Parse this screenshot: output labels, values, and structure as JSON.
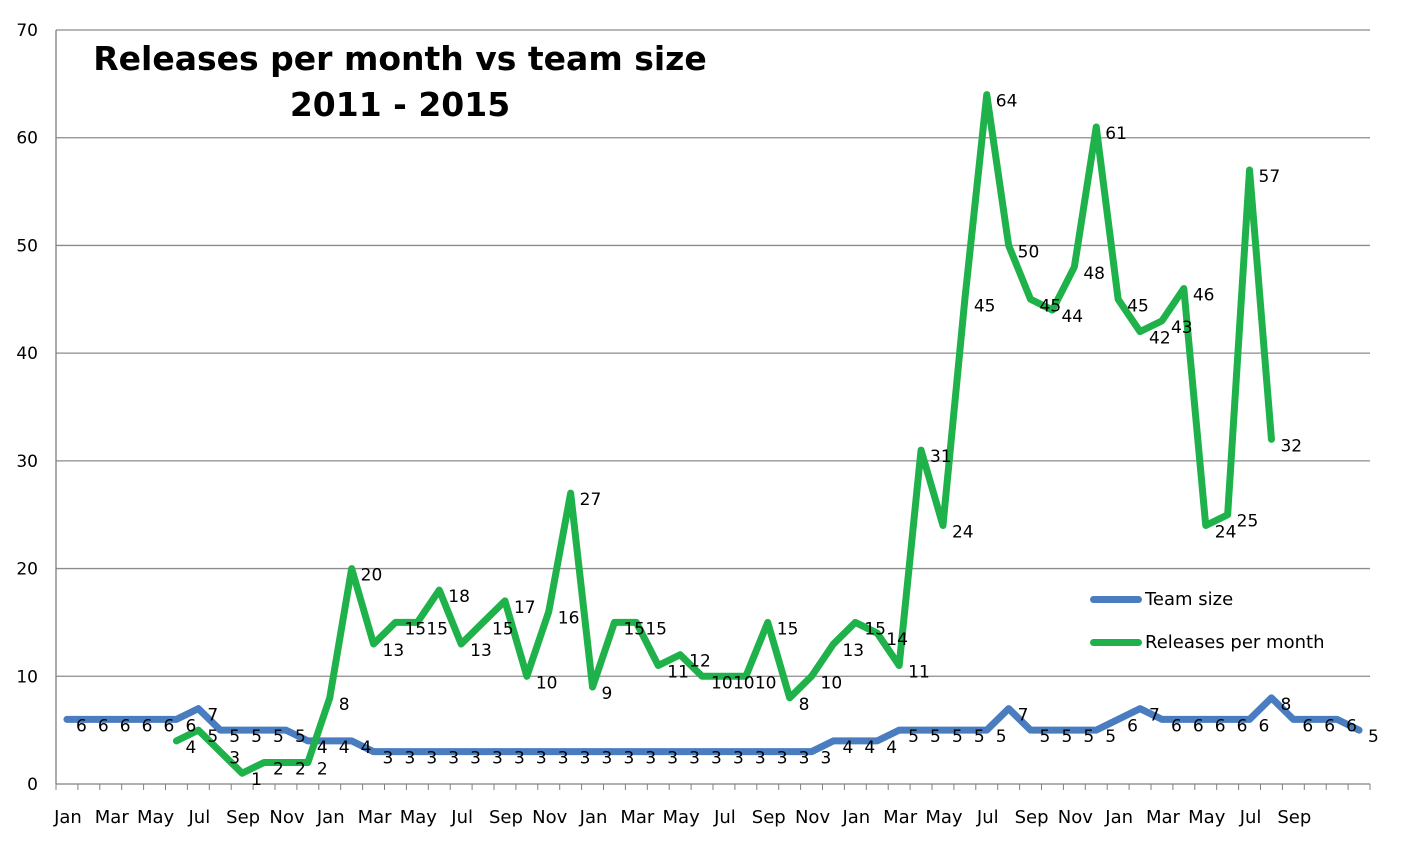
{
  "chart_data": {
    "type": "line",
    "title": "Releases per month vs team size",
    "subtitle": "2011 - 2015",
    "xlabel": "",
    "ylabel": "",
    "ylim": [
      0,
      70
    ],
    "y_ticks": [
      0,
      10,
      20,
      30,
      40,
      50,
      60,
      70
    ],
    "grid": true,
    "legend_position": "right",
    "x_tick_labels": [
      "Jan",
      "Mar",
      "May",
      "Jul",
      "Sep",
      "Nov",
      "Jan",
      "Mar",
      "May",
      "Jul",
      "Sep",
      "Nov",
      "Jan",
      "Mar",
      "May",
      "Jul",
      "Sep",
      "Nov",
      "Jan",
      "Mar",
      "May",
      "Jul",
      "Sep",
      "Nov",
      "Jan",
      "Mar",
      "May",
      "Jul",
      "Sep"
    ],
    "series": [
      {
        "name": "Team size",
        "color": "#4a7cc0",
        "start_index": 0,
        "values": [
          6,
          6,
          6,
          6,
          6,
          6,
          7,
          5,
          5,
          5,
          5,
          4,
          4,
          4,
          3,
          3,
          3,
          3,
          3,
          3,
          3,
          3,
          3,
          3,
          3,
          3,
          3,
          3,
          3,
          3,
          3,
          3,
          3,
          3,
          3,
          4,
          4,
          4,
          5,
          5,
          5,
          5,
          5,
          7,
          5,
          5,
          5,
          5,
          6,
          7,
          6,
          6,
          6,
          6,
          6,
          8,
          6,
          6,
          6,
          5
        ]
      },
      {
        "name": "Releases per month",
        "color": "#1fb24a",
        "start_index": 5,
        "values": [
          4,
          5,
          3,
          1,
          2,
          2,
          2,
          8,
          20,
          13,
          15,
          15,
          18,
          13,
          15,
          17,
          10,
          16,
          27,
          9,
          15,
          15,
          11,
          12,
          10,
          10,
          10,
          15,
          8,
          10,
          13,
          15,
          14,
          11,
          31,
          24,
          45,
          64,
          50,
          45,
          44,
          48,
          61,
          45,
          42,
          43,
          46,
          24,
          25,
          57,
          32
        ]
      }
    ]
  }
}
